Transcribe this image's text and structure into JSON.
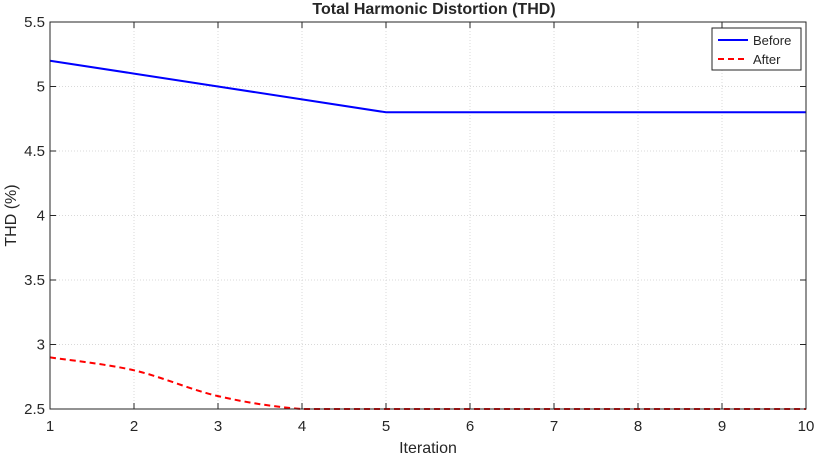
{
  "chart_data": {
    "type": "line",
    "title": "Total Harmonic Distortion (THD)",
    "xlabel": "Iteration",
    "ylabel": "THD (%)",
    "xlim": [
      1,
      10
    ],
    "ylim": [
      2.5,
      5.5
    ],
    "xticks": [
      "1",
      "2",
      "3",
      "4",
      "5",
      "6",
      "7",
      "8",
      "9",
      "10"
    ],
    "yticks": [
      "2.5",
      "3",
      "3.5",
      "4",
      "4.5",
      "5",
      "5.5"
    ],
    "grid": true,
    "legend_position": "top-right",
    "x": [
      1,
      2,
      3,
      4,
      5,
      6,
      7,
      8,
      9,
      10
    ],
    "series": [
      {
        "name": "Before",
        "values": [
          5.2,
          5.1,
          5.0,
          4.9,
          4.8,
          4.8,
          4.8,
          4.8,
          4.8,
          4.8
        ],
        "color": "#0000ff",
        "style": "solid",
        "smooth": false
      },
      {
        "name": "After",
        "values": [
          2.9,
          2.8,
          2.6,
          2.5,
          2.5,
          2.5,
          2.5,
          2.5,
          2.5,
          2.5
        ],
        "color": "#ff0000",
        "style": "dashed",
        "smooth": true
      }
    ]
  }
}
